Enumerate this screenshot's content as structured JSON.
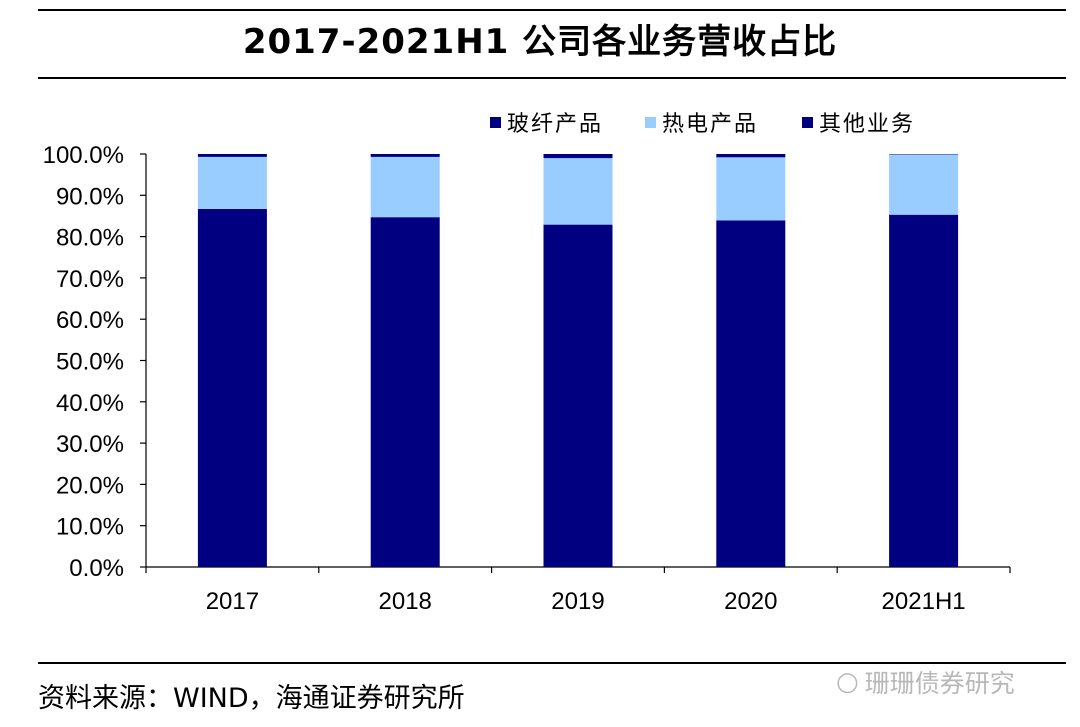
{
  "header": {
    "title": "2017-2021H1 公司各业务营收占比"
  },
  "footer": {
    "source": "资料来源：WIND，海通证券研究所",
    "watermark": "珊珊债券研究",
    "watermark_icon": "wechat-icon"
  },
  "chart_data": {
    "type": "bar",
    "stacked": true,
    "title": "2017-2021H1 公司各业务营收占比",
    "xlabel": "",
    "ylabel": "",
    "categories": [
      "2017",
      "2018",
      "2019",
      "2020",
      "2021H1"
    ],
    "series": [
      {
        "name": "玻纤产品",
        "color": "#000080",
        "values": [
          86.7,
          84.7,
          82.9,
          83.9,
          85.3
        ]
      },
      {
        "name": "热电产品",
        "color": "#99ccff",
        "values": [
          12.6,
          14.6,
          16.1,
          15.3,
          14.6
        ]
      },
      {
        "name": "其他业务",
        "color": "#000080",
        "values": [
          0.7,
          0.7,
          1.0,
          0.8,
          0.1
        ]
      }
    ],
    "ylim": [
      0,
      100
    ],
    "yticks": [
      "0.0%",
      "10.0%",
      "20.0%",
      "30.0%",
      "40.0%",
      "50.0%",
      "60.0%",
      "70.0%",
      "80.0%",
      "90.0%",
      "100.0%"
    ],
    "grid": false,
    "legend_position": "top-right"
  }
}
